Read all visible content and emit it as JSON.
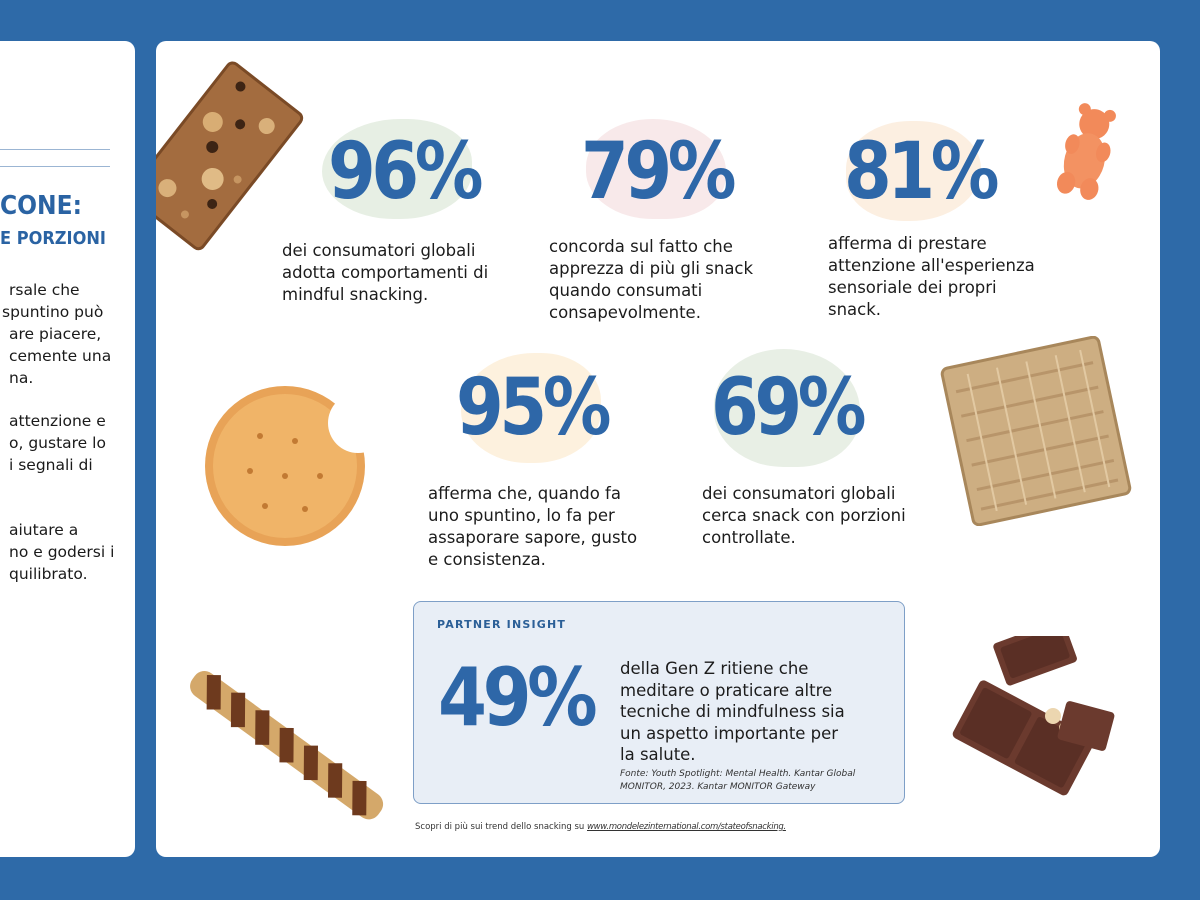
{
  "left_panel": {
    "heading_line1": "CONE:",
    "heading_line2": "E PORZIONI",
    "paragraph1": [
      "rsale che",
      "spuntino può",
      "are piacere,",
      "cemente una",
      "na."
    ],
    "paragraph2": [
      "attenzione e",
      "o, gustare lo",
      "i segnali di"
    ],
    "paragraph3": [
      "aiutare a",
      "no e godersi i",
      "quilibrato."
    ]
  },
  "stats": [
    {
      "value": "96%",
      "lines": [
        "dei consumatori globali",
        "adotta comportamenti di",
        "mindful snacking."
      ],
      "blob_color": "#e7efe4"
    },
    {
      "value": "79%",
      "lines": [
        "concorda sul fatto che",
        "apprezza di più gli snack",
        "quando consumati",
        "consapevolmente."
      ],
      "blob_color": "#f8e9ea"
    },
    {
      "value": "81%",
      "lines": [
        "afferma di prestare",
        "attenzione all'esperienza",
        "sensoriale dei propri",
        "snack."
      ],
      "blob_color": "#fcefe1"
    },
    {
      "value": "95%",
      "lines": [
        "afferma che, quando fa",
        "uno spuntino, lo fa per",
        "assaporare sapore, gusto",
        "e consistenza."
      ],
      "blob_color": "#fdf1de"
    },
    {
      "value": "69%",
      "lines": [
        "dei consumatori globali",
        "cerca snack con porzioni",
        "controllate."
      ],
      "blob_color": "#e8efe5"
    }
  ],
  "insight": {
    "label": "PARTNER INSIGHT",
    "value": "49%",
    "lines": [
      "della Gen Z ritiene che",
      "meditare o praticare altre",
      "tecniche di mindfulness sia",
      "un aspetto importante per",
      "la salute."
    ],
    "source_lines": [
      "Fonte: Youth Spotlight: Mental Health. Kantar Global",
      "MONITOR, 2023. Kantar MONITOR Gateway"
    ]
  },
  "footer": {
    "text": "Scopri di più sui trend dello snacking su ",
    "link": "www.mondelezinternational.com/stateofsnacking."
  },
  "colors": {
    "background": "#2e6aa8",
    "stat_blue": "#2e67a8",
    "panel": "#ffffff",
    "insight_bg": "#e8eef6"
  }
}
